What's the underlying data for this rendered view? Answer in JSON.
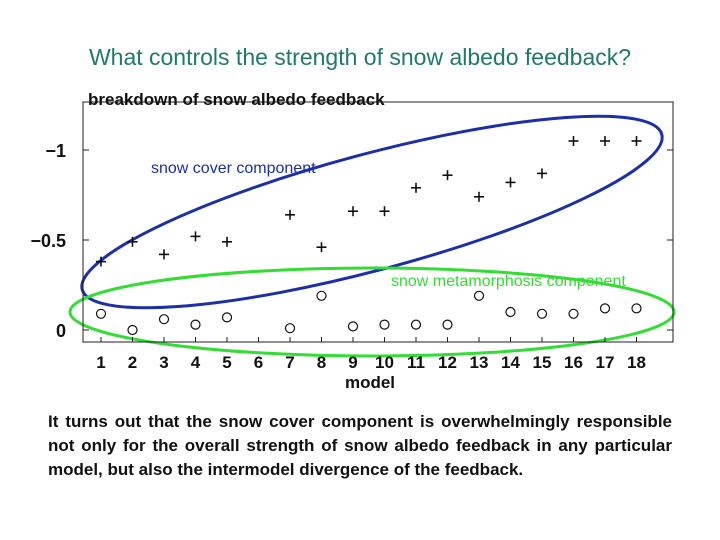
{
  "slide": {
    "title": "What controls the strength of snow albedo feedback?",
    "caption": "It turns out that the snow cover component is overwhelmingly responsible not only for the overall strength of snow albedo feedback in any particular model, but also the intermodel divergence of the feedback."
  },
  "chart_data": {
    "type": "scatter",
    "title": "breakdown of snow albedo feedback",
    "xlabel": "model",
    "ylabel": "",
    "categories": [
      "1",
      "2",
      "3",
      "4",
      "5",
      "6",
      "7",
      "8",
      "9",
      "10",
      "11",
      "12",
      "13",
      "14",
      "15",
      "16",
      "17",
      "18"
    ],
    "y_axis_inverted": true,
    "ylim": [
      0.05,
      -1.23
    ],
    "yticks": [
      {
        "value": -1,
        "label": "−1"
      },
      {
        "value": -0.5,
        "label": "−0.5"
      },
      {
        "value": 0,
        "label": "0"
      }
    ],
    "grid": false,
    "series": [
      {
        "name": "snow cover component",
        "marker": "+",
        "color": "#111111",
        "values": [
          {
            "x": 1,
            "y": -0.38
          },
          {
            "x": 2,
            "y": -0.49
          },
          {
            "x": 3,
            "y": -0.42
          },
          {
            "x": 4,
            "y": -0.52
          },
          {
            "x": 5,
            "y": -0.49
          },
          {
            "x": 7,
            "y": -0.64
          },
          {
            "x": 8,
            "y": -0.46
          },
          {
            "x": 9,
            "y": -0.66
          },
          {
            "x": 10,
            "y": -0.66
          },
          {
            "x": 11,
            "y": -0.79
          },
          {
            "x": 12,
            "y": -0.86
          },
          {
            "x": 13,
            "y": -0.74
          },
          {
            "x": 14,
            "y": -0.82
          },
          {
            "x": 15,
            "y": -0.87
          },
          {
            "x": 16,
            "y": -1.05
          },
          {
            "x": 17,
            "y": -1.05
          },
          {
            "x": 18,
            "y": -1.05
          }
        ]
      },
      {
        "name": "snow metamorphosis component",
        "marker": "o",
        "color": "#111111",
        "values": [
          {
            "x": 1,
            "y": -0.09
          },
          {
            "x": 2,
            "y": 0.0
          },
          {
            "x": 3,
            "y": -0.06
          },
          {
            "x": 4,
            "y": -0.03
          },
          {
            "x": 5,
            "y": -0.07
          },
          {
            "x": 7,
            "y": -0.01
          },
          {
            "x": 8,
            "y": -0.19
          },
          {
            "x": 9,
            "y": -0.02
          },
          {
            "x": 10,
            "y": -0.03
          },
          {
            "x": 11,
            "y": -0.03
          },
          {
            "x": 12,
            "y": -0.03
          },
          {
            "x": 13,
            "y": -0.19
          },
          {
            "x": 14,
            "y": -0.1
          },
          {
            "x": 15,
            "y": -0.09
          },
          {
            "x": 16,
            "y": -0.09
          },
          {
            "x": 17,
            "y": -0.12
          },
          {
            "x": 18,
            "y": -0.12
          }
        ]
      }
    ],
    "group_annotations": [
      {
        "text": "snow cover component",
        "color": "#1a2fa8",
        "encloses": "snow cover component"
      },
      {
        "text": "snow metamorphosis component",
        "color": "#33dd33",
        "encloses": "snow metamorphosis component"
      }
    ]
  }
}
